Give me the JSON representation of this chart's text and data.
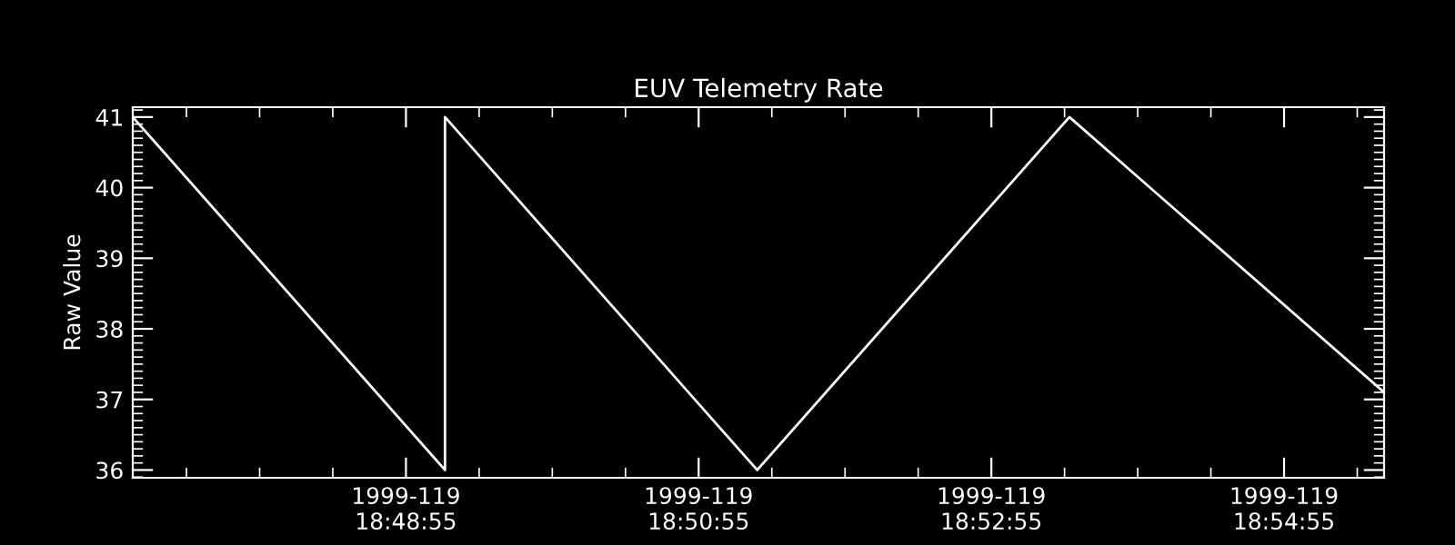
{
  "chart_data": {
    "type": "line",
    "title": "EUV Telemetry Rate",
    "ylabel": "Raw Value",
    "x": [
      "1999-04-29T18:47:03",
      "1999-04-29T18:49:11",
      "1999-04-29T18:49:11",
      "1999-04-29T18:51:19",
      "1999-04-29T18:53:27",
      "1999-04-29T18:55:36"
    ],
    "series": [
      {
        "color": "#ffffff",
        "values": [
          41,
          36,
          41,
          36,
          41,
          37.1
        ]
      }
    ],
    "xlim": [
      "1999-04-29T18:47:03",
      "1999-04-29T18:55:36"
    ],
    "xticks": [
      {
        "value": "1999-04-29T18:48:55",
        "label": "1999-119\n18:48:55"
      },
      {
        "value": "1999-04-29T18:50:55",
        "label": "1999-119\n18:50:55"
      },
      {
        "value": "1999-04-29T18:52:55",
        "label": "1999-119\n18:52:55"
      },
      {
        "value": "1999-04-29T18:54:55",
        "label": "1999-119\n18:54:55"
      }
    ],
    "ylim": [
      35.89,
      41.14
    ],
    "yticks": [
      36,
      37,
      38,
      39,
      40,
      41
    ],
    "grid": false,
    "legend": false,
    "marker": "none",
    "line_style": "solid"
  }
}
